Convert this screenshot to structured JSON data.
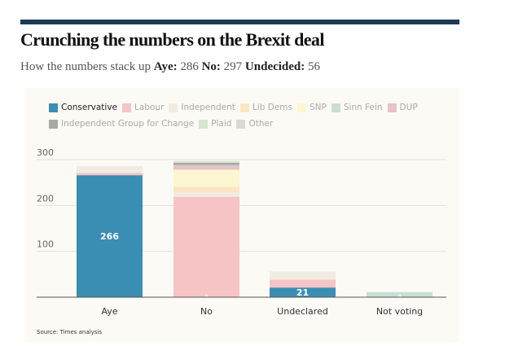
{
  "header": {
    "title": "Crunching the numbers on the Brexit deal",
    "subtitle_prefix": "How the numbers stack up",
    "stats": [
      {
        "label": "Aye:",
        "value": "286"
      },
      {
        "label": "No:",
        "value": "297"
      },
      {
        "label": "Undecided:",
        "value": "56"
      }
    ]
  },
  "source": "Source: Times analysis",
  "chart_data": {
    "type": "bar",
    "stacked": true,
    "title": "Crunching the numbers on the Brexit deal",
    "xlabel": "",
    "ylabel": "",
    "ylim": [
      0,
      300
    ],
    "yticks": [
      100,
      200,
      300
    ],
    "grid": true,
    "legend_position": "top-left",
    "categories": [
      "Aye",
      "No",
      "Undeclared",
      "Not voting"
    ],
    "series": [
      {
        "name": "Conservative",
        "color": "#3a8db3",
        "values": [
          266,
          0,
          21,
          0
        ],
        "active": true
      },
      {
        "name": "Labour",
        "color": "#f6c4c4",
        "values": [
          5,
          219,
          17,
          0
        ]
      },
      {
        "name": "Independent",
        "color": "#f1ebe2",
        "values": [
          15,
          10,
          18,
          0
        ]
      },
      {
        "name": "Lib Dems",
        "color": "#fbe6c4",
        "values": [
          0,
          12,
          0,
          0
        ]
      },
      {
        "name": "SNP",
        "color": "#fcf6d2",
        "values": [
          0,
          37,
          0,
          0
        ]
      },
      {
        "name": "Sinn Fein",
        "color": "#c9dfd3",
        "values": [
          0,
          0,
          0,
          11
        ]
      },
      {
        "name": "DUP",
        "color": "#e4c4c6",
        "values": [
          0,
          10,
          0,
          0
        ]
      },
      {
        "name": "Independent Group for Change",
        "color": "#a9a9a7",
        "values": [
          0,
          5,
          0,
          0
        ]
      },
      {
        "name": "Plaid",
        "color": "#d5e6ce",
        "values": [
          0,
          4,
          0,
          0
        ]
      },
      {
        "name": "Other",
        "color": "#dcd8d2",
        "values": [
          0,
          0,
          0,
          0
        ]
      }
    ],
    "data_labels": [
      {
        "category": "Aye",
        "series": "Conservative",
        "text": "266"
      },
      {
        "category": "No",
        "series": "Conservative",
        "text": "0"
      },
      {
        "category": "Undeclared",
        "series": "Conservative",
        "text": "21"
      },
      {
        "category": "Not voting",
        "series": "Conservative",
        "text": "0"
      }
    ]
  }
}
